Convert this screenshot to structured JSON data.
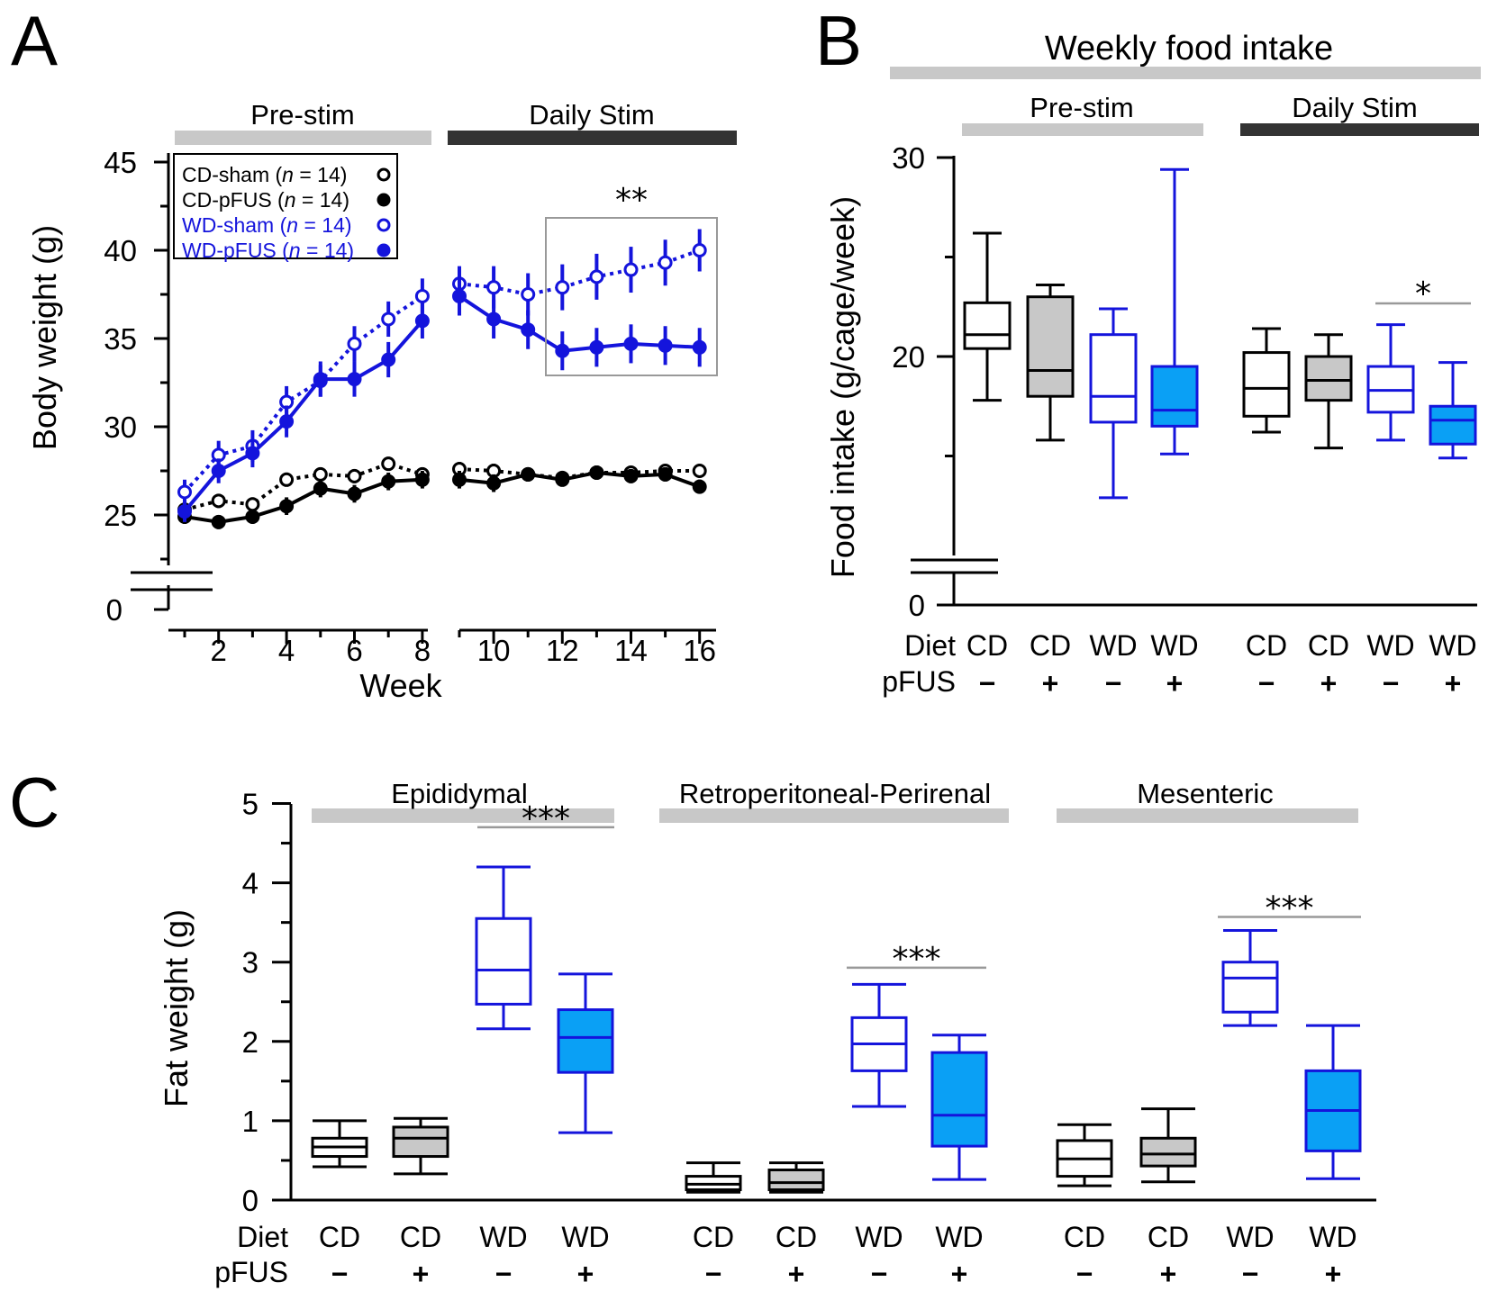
{
  "panels": {
    "a": {
      "letter": "A",
      "bars": {
        "pre": "Pre-stim",
        "stim": "Daily Stim"
      },
      "ylabel": "Body weight (g)",
      "xlabel": "Week",
      "yticks": [
        "45",
        "40",
        "35",
        "30",
        "25",
        "0"
      ],
      "xticks": [
        "2",
        "4",
        "6",
        "8",
        "10",
        "12",
        "14",
        "16"
      ],
      "legend": [
        {
          "name": "CD-sham",
          "n_prefix": "(",
          "n_italic": "n",
          "n_suffix": " = 14)",
          "color": "#000000",
          "filled": false,
          "dashed": true
        },
        {
          "name": "CD-pFUS",
          "n_prefix": "(",
          "n_italic": "n",
          "n_suffix": " = 14)",
          "color": "#000000",
          "filled": true,
          "dashed": false
        },
        {
          "name": "WD-sham",
          "n_prefix": "(",
          "n_italic": "n",
          "n_suffix": " = 14)",
          "color": "#1414dc",
          "filled": false,
          "dashed": true
        },
        {
          "name": "WD-pFUS",
          "n_prefix": "(",
          "n_italic": "n",
          "n_suffix": " = 14)",
          "color": "#1414dc",
          "filled": true,
          "dashed": false
        }
      ],
      "significance": "**"
    },
    "b": {
      "letter": "B",
      "title": "Weekly food intake",
      "bars": {
        "pre": "Pre-stim",
        "stim": "Daily Stim"
      },
      "ylabel": "Food intake (g/cage/week)",
      "yticks": [
        "30",
        "20",
        "0"
      ],
      "row_labels": {
        "diet": "Diet",
        "pfus": "pFUS"
      },
      "significance": "*"
    },
    "c": {
      "letter": "C",
      "ylabel": "Fat weight (g)",
      "yticks": [
        "5",
        "4",
        "3",
        "2",
        "1",
        "0"
      ],
      "groups": [
        "Epididymal",
        "Retroperitoneal-Perirenal",
        "Mesenteric"
      ],
      "row_labels": {
        "diet": "Diet",
        "pfus": "pFUS"
      },
      "significance": [
        "***",
        "***",
        "***"
      ]
    }
  },
  "colors": {
    "black": "#000000",
    "blue": "#1414dc",
    "fill_blue": "#0aa0f5",
    "fill_gray": "#c8c8c8",
    "bar_light": "#c8c8c8",
    "bar_dark": "#333333"
  },
  "chart_data": [
    {
      "type": "line",
      "title": "",
      "xlabel": "Week",
      "ylabel": "Body weight (g)",
      "ylim": [
        20,
        45
      ],
      "axis_break": "y between 0 and ~21 g",
      "x": [
        1,
        2,
        3,
        4,
        5,
        6,
        7,
        8,
        9,
        10,
        11,
        12,
        13,
        14,
        15,
        16
      ],
      "series": [
        {
          "name": "CD-sham",
          "y": [
            25.3,
            25.8,
            25.6,
            27.0,
            27.3,
            27.2,
            27.9,
            27.3,
            27.6,
            27.5,
            27.3,
            27.1,
            27.4,
            27.4,
            27.5,
            27.5
          ],
          "err": [
            0.4,
            0.4,
            0.4,
            0.4,
            0.4,
            0.4,
            0.4,
            0.4,
            0.4,
            0.4,
            0.3,
            0.3,
            0.3,
            0.3,
            0.3,
            0.3
          ]
        },
        {
          "name": "CD-pFUS",
          "y": [
            24.9,
            24.6,
            24.9,
            25.5,
            26.5,
            26.2,
            26.9,
            27.0,
            27.0,
            26.8,
            27.3,
            27.0,
            27.4,
            27.2,
            27.3,
            26.6
          ],
          "err": [
            0.4,
            0.4,
            0.4,
            0.5,
            0.5,
            0.5,
            0.5,
            0.5,
            0.5,
            0.5,
            0.4,
            0.4,
            0.4,
            0.4,
            0.4,
            0.4
          ]
        },
        {
          "name": "WD-sham",
          "y": [
            26.3,
            28.4,
            28.9,
            31.4,
            32.6,
            34.7,
            36.1,
            37.4,
            38.1,
            37.9,
            37.5,
            37.9,
            38.5,
            38.9,
            39.3,
            40.0
          ],
          "err": [
            0.7,
            0.8,
            0.9,
            0.9,
            0.9,
            1.0,
            1.0,
            1.0,
            1.0,
            1.2,
            1.2,
            1.3,
            1.3,
            1.3,
            1.3,
            1.2
          ]
        },
        {
          "name": "WD-pFUS",
          "y": [
            25.2,
            27.5,
            28.5,
            30.3,
            32.7,
            32.7,
            33.8,
            36.0,
            37.4,
            36.1,
            35.5,
            34.3,
            34.5,
            34.7,
            34.6,
            34.5
          ],
          "err": [
            0.6,
            0.7,
            0.8,
            0.9,
            1.0,
            1.0,
            1.0,
            1.0,
            1.1,
            1.1,
            1.1,
            1.1,
            1.1,
            1.1,
            1.1,
            1.1
          ]
        }
      ],
      "annotation": {
        "text": "**",
        "x_range": [
          12,
          16
        ]
      }
    },
    {
      "type": "box",
      "title": "Weekly food intake",
      "ylabel": "Food intake (g/cage/week)",
      "ylim": [
        0,
        30
      ],
      "axis_break": "y between 0 and ~19 g",
      "boxes": [
        {
          "phase": "Pre-stim",
          "diet": "CD",
          "pfus": "−",
          "min": 17.8,
          "q1": 20.4,
          "median": 21.1,
          "q3": 22.7,
          "max": 26.2
        },
        {
          "phase": "Pre-stim",
          "diet": "CD",
          "pfus": "+",
          "min": 15.8,
          "q1": 18.0,
          "median": 19.3,
          "q3": 23.0,
          "max": 23.6
        },
        {
          "phase": "Pre-stim",
          "diet": "WD",
          "pfus": "−",
          "min": 12.9,
          "q1": 16.7,
          "median": 18.0,
          "q3": 21.1,
          "max": 22.4
        },
        {
          "phase": "Pre-stim",
          "diet": "WD",
          "pfus": "+",
          "min": 15.1,
          "q1": 16.5,
          "median": 17.3,
          "q3": 19.5,
          "max": 29.4
        },
        {
          "phase": "Daily Stim",
          "diet": "CD",
          "pfus": "−",
          "min": 16.2,
          "q1": 17.0,
          "median": 18.4,
          "q3": 20.2,
          "max": 21.4
        },
        {
          "phase": "Daily Stim",
          "diet": "CD",
          "pfus": "+",
          "min": 15.4,
          "q1": 17.8,
          "median": 18.8,
          "q3": 20.0,
          "max": 21.1
        },
        {
          "phase": "Daily Stim",
          "diet": "WD",
          "pfus": "−",
          "min": 15.8,
          "q1": 17.2,
          "median": 18.3,
          "q3": 19.5,
          "max": 21.6
        },
        {
          "phase": "Daily Stim",
          "diet": "WD",
          "pfus": "+",
          "min": 14.9,
          "q1": 15.6,
          "median": 16.8,
          "q3": 17.5,
          "max": 19.7
        }
      ],
      "annotation": {
        "text": "*",
        "between": [
          "Daily Stim WD −",
          "Daily Stim WD +"
        ]
      }
    },
    {
      "type": "box",
      "ylabel": "Fat weight (g)",
      "ylim": [
        0,
        5
      ],
      "boxes": [
        {
          "group": "Epididymal",
          "diet": "CD",
          "pfus": "−",
          "min": 0.42,
          "q1": 0.55,
          "median": 0.67,
          "q3": 0.78,
          "max": 1.0
        },
        {
          "group": "Epididymal",
          "diet": "CD",
          "pfus": "+",
          "min": 0.33,
          "q1": 0.55,
          "median": 0.78,
          "q3": 0.92,
          "max": 1.03
        },
        {
          "group": "Epididymal",
          "diet": "WD",
          "pfus": "−",
          "min": 2.16,
          "q1": 2.47,
          "median": 2.9,
          "q3": 3.55,
          "max": 4.2
        },
        {
          "group": "Epididymal",
          "diet": "WD",
          "pfus": "+",
          "min": 0.85,
          "q1": 1.61,
          "median": 2.05,
          "q3": 2.4,
          "max": 2.85
        },
        {
          "group": "Retroperitoneal-Perirenal",
          "diet": "CD",
          "pfus": "−",
          "min": 0.1,
          "q1": 0.13,
          "median": 0.2,
          "q3": 0.3,
          "max": 0.47
        },
        {
          "group": "Retroperitoneal-Perirenal",
          "diet": "CD",
          "pfus": "+",
          "min": 0.1,
          "q1": 0.13,
          "median": 0.22,
          "q3": 0.38,
          "max": 0.47
        },
        {
          "group": "Retroperitoneal-Perirenal",
          "diet": "WD",
          "pfus": "−",
          "min": 1.18,
          "q1": 1.63,
          "median": 1.97,
          "q3": 2.3,
          "max": 2.72
        },
        {
          "group": "Retroperitoneal-Perirenal",
          "diet": "WD",
          "pfus": "+",
          "min": 0.26,
          "q1": 0.68,
          "median": 1.07,
          "q3": 1.86,
          "max": 2.08
        },
        {
          "group": "Mesenteric",
          "diet": "CD",
          "pfus": "−",
          "min": 0.18,
          "q1": 0.3,
          "median": 0.52,
          "q3": 0.75,
          "max": 0.95
        },
        {
          "group": "Mesenteric",
          "diet": "CD",
          "pfus": "+",
          "min": 0.23,
          "q1": 0.43,
          "median": 0.58,
          "q3": 0.78,
          "max": 1.15
        },
        {
          "group": "Mesenteric",
          "diet": "WD",
          "pfus": "−",
          "min": 2.2,
          "q1": 2.37,
          "median": 2.8,
          "q3": 3.0,
          "max": 3.4
        },
        {
          "group": "Mesenteric",
          "diet": "WD",
          "pfus": "+",
          "min": 0.27,
          "q1": 0.62,
          "median": 1.13,
          "q3": 1.63,
          "max": 2.2
        }
      ],
      "annotations": [
        {
          "text": "***",
          "group": "Epididymal"
        },
        {
          "text": "***",
          "group": "Retroperitoneal-Perirenal"
        },
        {
          "text": "***",
          "group": "Mesenteric"
        }
      ]
    }
  ]
}
